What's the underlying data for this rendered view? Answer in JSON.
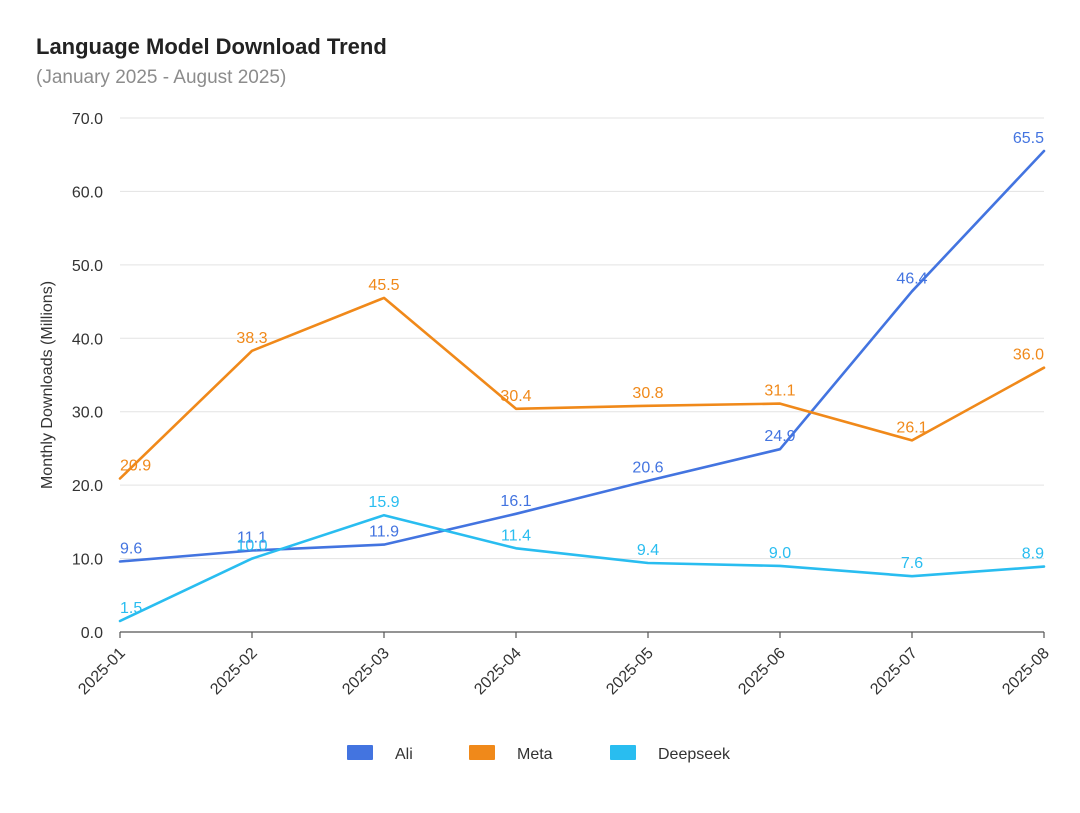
{
  "chart_data": {
    "type": "line",
    "title": "Language Model Download Trend",
    "subtitle": "(January 2025 - August 2025)",
    "xlabel": "",
    "ylabel": "Monthly Downloads (Millions)",
    "ylim": [
      0,
      70
    ],
    "yticks": [
      "0.0",
      "10.0",
      "20.0",
      "30.0",
      "40.0",
      "50.0",
      "60.0",
      "70.0"
    ],
    "grid": true,
    "legend_position": "bottom",
    "categories": [
      "2025-01",
      "2025-02",
      "2025-03",
      "2025-04",
      "2025-05",
      "2025-06",
      "2025-07",
      "2025-08"
    ],
    "series": [
      {
        "name": "Ali",
        "color": "#4374e0",
        "values": [
          9.6,
          11.1,
          11.9,
          16.1,
          20.6,
          24.9,
          46.4,
          65.5
        ]
      },
      {
        "name": "Meta",
        "color": "#f0891a",
        "values": [
          20.9,
          38.3,
          45.5,
          30.4,
          30.8,
          31.1,
          26.1,
          36.0
        ]
      },
      {
        "name": "Deepseek",
        "color": "#29bdf0",
        "values": [
          1.5,
          10.0,
          15.9,
          11.4,
          9.4,
          9.0,
          7.6,
          8.9
        ]
      }
    ]
  }
}
